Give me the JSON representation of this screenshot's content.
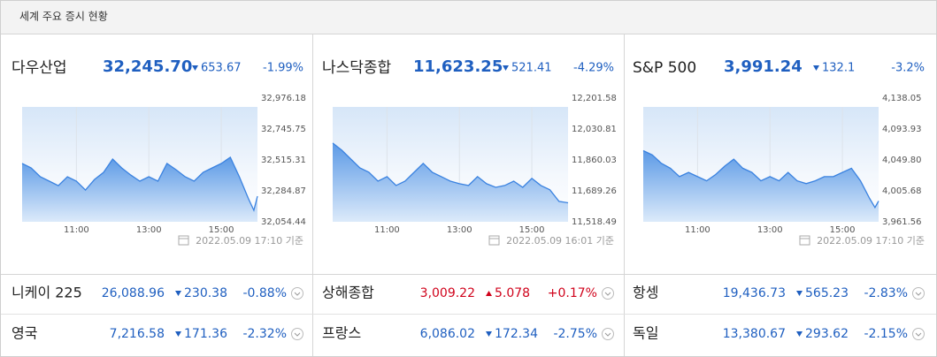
{
  "header": {
    "title": "세계 주요 증시 현황"
  },
  "chart_data": [
    {
      "type": "line",
      "title": "다우산업",
      "price": "32,245.70",
      "change": "653.67",
      "change_pct": "-1.99%",
      "text_color": "#1f5fc0",
      "color": "#3a82e0",
      "note": "2022.05.09 17:10 기준",
      "x": [
        9.5,
        9.75,
        10,
        10.25,
        10.5,
        10.75,
        11,
        11.25,
        11.5,
        11.75,
        12,
        12.25,
        12.5,
        12.75,
        13,
        13.25,
        13.5,
        13.75,
        14,
        14.25,
        14.5,
        14.75,
        15,
        15.25,
        15.5,
        15.75,
        15.9,
        16
      ],
      "values": [
        32489,
        32456,
        32390,
        32357,
        32324,
        32390,
        32357,
        32291,
        32370,
        32423,
        32522,
        32456,
        32403,
        32357,
        32390,
        32357,
        32489,
        32443,
        32390,
        32357,
        32423,
        32456,
        32489,
        32535,
        32390,
        32226,
        32140,
        32245.7
      ],
      "xlim": [
        9.5,
        16
      ],
      "xticks": [
        {
          "value": 11,
          "label": "11:00"
        },
        {
          "value": 13,
          "label": "13:00"
        },
        {
          "value": 15,
          "label": "15:00"
        }
      ],
      "ylim": [
        32054.44,
        32976.18
      ],
      "yticks": [
        {
          "value": 32976.18,
          "label": "32,976.18"
        },
        {
          "value": 32745.75,
          "label": "32,745.75"
        },
        {
          "value": 32515.31,
          "label": "32,515.31"
        },
        {
          "value": 32284.87,
          "label": "32,284.87"
        },
        {
          "value": 32054.44,
          "label": "32,054.44"
        }
      ],
      "grid": true
    },
    {
      "type": "line",
      "title": "나스닥종합",
      "price": "11,623.25",
      "change": "521.41",
      "change_pct": "-4.29%",
      "text_color": "#1f5fc0",
      "color": "#3a82e0",
      "note": "2022.05.09 16:01 기준",
      "x": [
        9.5,
        9.75,
        10,
        10.25,
        10.5,
        10.75,
        11,
        11.25,
        11.5,
        11.75,
        12,
        12.25,
        12.5,
        12.75,
        13,
        13.25,
        13.5,
        13.75,
        14,
        14.25,
        14.5,
        14.75,
        15,
        15.25,
        15.5,
        15.75,
        16
      ],
      "values": [
        11953,
        11914,
        11865,
        11816,
        11792,
        11743,
        11768,
        11719,
        11743,
        11792,
        11841,
        11792,
        11768,
        11743,
        11729,
        11719,
        11768,
        11729,
        11709,
        11719,
        11743,
        11709,
        11758,
        11719,
        11695,
        11631,
        11623.25
      ],
      "xlim": [
        9.5,
        16
      ],
      "xticks": [
        {
          "value": 11,
          "label": "11:00"
        },
        {
          "value": 13,
          "label": "13:00"
        },
        {
          "value": 15,
          "label": "15:00"
        }
      ],
      "ylim": [
        11518.49,
        12201.58
      ],
      "yticks": [
        {
          "value": 12201.58,
          "label": "12,201.58"
        },
        {
          "value": 12030.81,
          "label": "12,030.81"
        },
        {
          "value": 11860.03,
          "label": "11,860.03"
        },
        {
          "value": 11689.26,
          "label": "11,689.26"
        },
        {
          "value": 11518.49,
          "label": "11,518.49"
        }
      ],
      "grid": true
    },
    {
      "type": "line",
      "title": "S&P 500",
      "price": "3,991.24",
      "change": "132.1",
      "change_pct": "-3.2%",
      "text_color": "#1f5fc0",
      "color": "#3a82e0",
      "note": "2022.05.09 17:10 기준",
      "x": [
        9.5,
        9.75,
        10,
        10.25,
        10.5,
        10.75,
        11,
        11.25,
        11.5,
        11.75,
        12,
        12.25,
        12.5,
        12.75,
        13,
        13.25,
        13.5,
        13.75,
        14,
        14.25,
        14.5,
        14.75,
        15,
        15.25,
        15.5,
        15.75,
        15.9,
        16
      ],
      "values": [
        4063,
        4057,
        4045,
        4038,
        4026,
        4032,
        4026,
        4020,
        4029,
        4041,
        4051,
        4038,
        4032,
        4020,
        4026,
        4020,
        4032,
        4020,
        4016,
        4020,
        4026,
        4026,
        4032,
        4038,
        4020,
        3995,
        3982,
        3991.24
      ],
      "xlim": [
        9.5,
        16
      ],
      "xticks": [
        {
          "value": 11,
          "label": "11:00"
        },
        {
          "value": 13,
          "label": "13:00"
        },
        {
          "value": 15,
          "label": "15:00"
        }
      ],
      "ylim": [
        3961.56,
        4138.05
      ],
      "yticks": [
        {
          "value": 4138.05,
          "label": "4,138.05"
        },
        {
          "value": 4093.93,
          "label": "4,093.93"
        },
        {
          "value": 4049.8,
          "label": "4,049.80"
        },
        {
          "value": 4005.68,
          "label": "4,005.68"
        },
        {
          "value": 3961.56,
          "label": "3,961.56"
        }
      ],
      "grid": true
    }
  ],
  "indices": [
    {
      "name": "니케이 225",
      "price": "26,088.96",
      "change": "230.38",
      "change_pct": "-0.88%",
      "color": "#1f5fc0"
    },
    {
      "name": "상해종합",
      "price": "3,009.22",
      "change": "5.078",
      "change_pct": "+0.17%",
      "color": "#d0021b"
    },
    {
      "name": "항셍",
      "price": "19,436.73",
      "change": "565.23",
      "change_pct": "-2.83%",
      "color": "#1f5fc0"
    },
    {
      "name": "영국",
      "price": "7,216.58",
      "change": "171.36",
      "change_pct": "-2.32%",
      "color": "#1f5fc0"
    },
    {
      "name": "프랑스",
      "price": "6,086.02",
      "change": "172.34",
      "change_pct": "-2.75%",
      "color": "#1f5fc0"
    },
    {
      "name": "독일",
      "price": "13,380.67",
      "change": "293.62",
      "change_pct": "-2.15%",
      "color": "#1f5fc0"
    }
  ]
}
